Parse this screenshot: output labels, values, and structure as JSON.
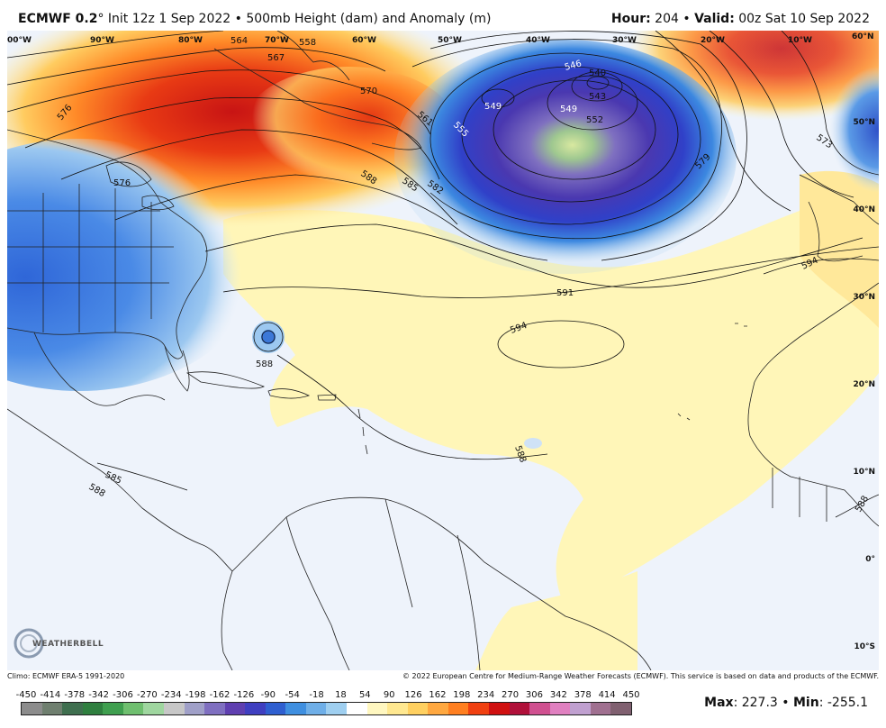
{
  "header": {
    "model": "ECMWF 0.2",
    "degree": "°",
    "init": " Init 12z 1 Sep 2022 • 500mb Height (dam) and Anomaly (m)",
    "hour_label": "Hour:",
    "hour_value": " 204 • ",
    "valid_label": "Valid:",
    "valid_value": " 00z Sat 10 Sep 2022"
  },
  "lon_labels": [
    "00°W",
    "90°W",
    "80°W",
    "70°W",
    "60°W",
    "50°W",
    "40°W",
    "30°W",
    "20°W",
    "10°W",
    "60°N"
  ],
  "lat_labels": [
    "50°N",
    "40°N",
    "30°N",
    "20°N",
    "10°N",
    "0°",
    "10°S"
  ],
  "contour_labels": [
    "558",
    "564",
    "567",
    "570",
    "576",
    "576",
    "561",
    "555",
    "549",
    "546",
    "540",
    "543",
    "549",
    "552",
    "579",
    "573",
    "588",
    "585",
    "582",
    "591",
    "594",
    "594",
    "588",
    "588",
    "585",
    "588",
    "588"
  ],
  "credits": {
    "climo": "Climo: ECMWF ERA-5 1991-2020",
    "copyright": "© 2022 European Centre for Medium-Range Weather Forecasts (ECMWF). This service is based on data and products of the ECMWF."
  },
  "colorbar": {
    "ticks": [
      "-450",
      "-414",
      "-378",
      "-342",
      "-306",
      "-270",
      "-234",
      "-198",
      "-162",
      "-126",
      "-90",
      "-54",
      "-18",
      "18",
      "54",
      "90",
      "126",
      "162",
      "198",
      "234",
      "270",
      "306",
      "342",
      "378",
      "414",
      "450"
    ],
    "colors": [
      "#8c8c8c",
      "#6f7f6f",
      "#3f6f4f",
      "#2f7f3f",
      "#3f9f4f",
      "#6fbf6f",
      "#9fd69f",
      "#c7c7c7",
      "#a0a0c8",
      "#7f6fc0",
      "#5f3fb0",
      "#3f3fc0",
      "#2f5fd0",
      "#3f8fe0",
      "#6fafe8",
      "#9fcff0",
      "#ffffff",
      "#fff7c0",
      "#ffe890",
      "#ffd060",
      "#ffa840",
      "#ff7f20",
      "#f04010",
      "#d01010",
      "#b0103a",
      "#d05090",
      "#e080c0",
      "#c0a0d0",
      "#a07090",
      "#806070"
    ]
  },
  "stats": {
    "max_label": "Max",
    "max_value": ": 227.3 • ",
    "min_label": "Min",
    "min_value": ": -255.1"
  },
  "logo": "WEATHERBELL"
}
